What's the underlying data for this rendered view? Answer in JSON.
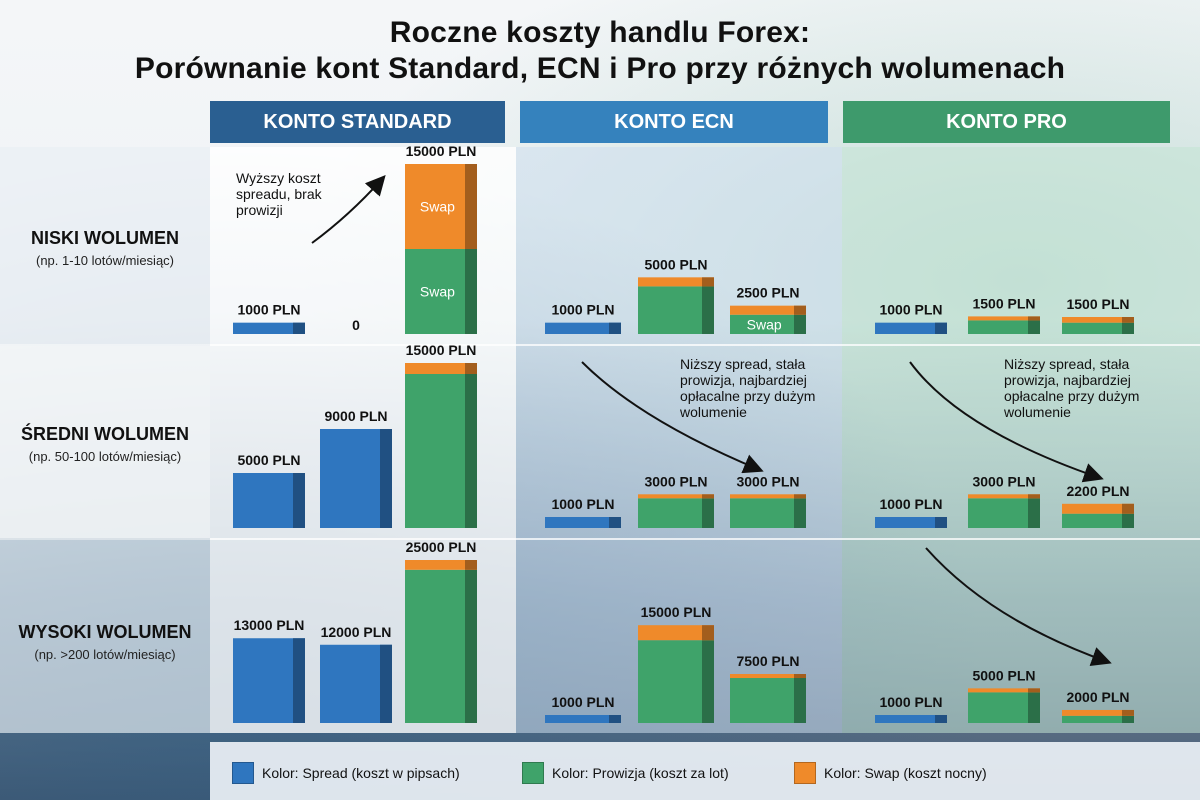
{
  "title": {
    "line1": "Roczne koszty handlu Forex:",
    "line2": "Porównanie kont Standard, ECN i Pro przy różnych wolumenach"
  },
  "accounts": [
    "KONTO STANDARD",
    "KONTO ECN",
    "KONTO PRO"
  ],
  "rows": [
    {
      "label": "NISKI WOLUMEN",
      "sub": "(np. 1-10 lotów/miesiąc)"
    },
    {
      "label": "ŚREDNI WOLUMEN",
      "sub": "(np. 50-100 lotów/miesiąc)"
    },
    {
      "label": "WYSOKI WOLUMEN",
      "sub": "(np. >200 lotów/miesiąc)"
    }
  ],
  "annotations": {
    "standard_low": "Wyższy koszt spreadu, brak prowizji",
    "ecn_mid": "Niższy spread, stała prowizja, najbardziej opłacalne przy dużym wolumenie",
    "pro_mid": "Niższy spread, stała prowizja, najbardziej opłacalne przy dużym wolumenie"
  },
  "legend": [
    {
      "label": "Kolor: Spread (koszt w pipsach)",
      "color": "#2f76bf"
    },
    {
      "label": "Kolor: Prowizja (koszt za lot)",
      "color": "#3fa36a"
    },
    {
      "label": "Kolor: Swap (koszt nocny)",
      "color": "#ef8a2a"
    }
  ],
  "colors": {
    "standard_header": "#2a5f91",
    "ecn_header": "#3582bd",
    "pro_header": "#3e9a6c",
    "spread": "#2f76bf",
    "commission": "#3fa36a",
    "swap": "#ef8a2a"
  },
  "chart_data": {
    "type": "bar",
    "title": "Roczne koszty handlu Forex: Porównanie kont Standard, ECN i Pro przy różnych wolumenach",
    "unit": "PLN",
    "segment_labels": {
      "commission": "Swap",
      "swap": "Swap",
      "swap_ecn_low": "Swap"
    },
    "panels": [
      {
        "account": "KONTO STANDARD",
        "volume": "NISKI WOLUMEN",
        "bars": [
          {
            "label": "1000 PLN",
            "value": 1000,
            "segments": {
              "spread": 1000
            }
          },
          {
            "label": "0",
            "value": 0,
            "segments": {}
          },
          {
            "label": "15000 PLN",
            "value": 15000,
            "segments": {
              "commission": 7500,
              "swap": 7500
            },
            "segment_text": {
              "commission": "Swap",
              "swap": "Swap"
            }
          }
        ]
      },
      {
        "account": "KONTO ECN",
        "volume": "NISKI WOLUMEN",
        "bars": [
          {
            "label": "1000 PLN",
            "value": 1000,
            "segments": {
              "spread": 1000
            }
          },
          {
            "label": "5000 PLN",
            "value": 5000,
            "segments": {
              "commission": 4200,
              "swap": 800
            }
          },
          {
            "label": "2500 PLN",
            "value": 2500,
            "segments": {
              "commission": 1700,
              "swap": 800
            },
            "segment_text": {
              "commission": "Swap"
            }
          }
        ]
      },
      {
        "account": "KONTO PRO",
        "volume": "NISKI WOLUMEN",
        "bars": [
          {
            "label": "1000 PLN",
            "value": 1000,
            "segments": {
              "spread": 1000
            }
          },
          {
            "label": "1500 PLN",
            "value": 1500,
            "segments": {
              "commission": 1200,
              "swap": 300
            }
          },
          {
            "label": "1500 PLN",
            "value": 1500,
            "segments": {
              "commission": 1000,
              "swap": 500
            }
          }
        ]
      },
      {
        "account": "KONTO STANDARD",
        "volume": "ŚREDNI WOLUMEN",
        "bars": [
          {
            "label": "5000 PLN",
            "value": 5000,
            "segments": {
              "spread": 5000
            }
          },
          {
            "label": "9000 PLN",
            "value": 9000,
            "segments": {
              "spread": 9000
            }
          },
          {
            "label": "15000 PLN",
            "value": 15000,
            "segments": {
              "commission": 14000,
              "swap": 1000
            }
          }
        ]
      },
      {
        "account": "KONTO ECN",
        "volume": "ŚREDNI WOLUMEN",
        "bars": [
          {
            "label": "1000 PLN",
            "value": 1000,
            "segments": {
              "spread": 1000
            }
          },
          {
            "label": "3000 PLN",
            "value": 3000,
            "segments": {
              "commission": 2700,
              "swap": 300
            }
          },
          {
            "label": "3000 PLN",
            "value": 3000,
            "segments": {
              "commission": 2700,
              "swap": 300
            }
          }
        ]
      },
      {
        "account": "KONTO PRO",
        "volume": "ŚREDNI WOLUMEN",
        "bars": [
          {
            "label": "1000 PLN",
            "value": 1000,
            "segments": {
              "spread": 1000
            }
          },
          {
            "label": "3000 PLN",
            "value": 3000,
            "segments": {
              "commission": 2700,
              "swap": 300
            }
          },
          {
            "label": "2200 PLN",
            "value": 2200,
            "segments": {
              "commission": 1300,
              "swap": 900
            }
          }
        ]
      },
      {
        "account": "KONTO STANDARD",
        "volume": "WYSOKI WOLUMEN",
        "bars": [
          {
            "label": "13000 PLN",
            "value": 13000,
            "segments": {
              "spread": 13000
            }
          },
          {
            "label": "12000 PLN",
            "value": 12000,
            "segments": {
              "spread": 12000
            }
          },
          {
            "label": "25000 PLN",
            "value": 25000,
            "segments": {
              "commission": 23500,
              "swap": 1500
            }
          }
        ]
      },
      {
        "account": "KONTO ECN",
        "volume": "WYSOKI WOLUMEN",
        "bars": [
          {
            "label": "1000 PLN",
            "value": 1000,
            "segments": {
              "spread": 1000
            }
          },
          {
            "label": "15000 PLN",
            "value": 15000,
            "segments": {
              "commission": 12700,
              "swap": 2300
            }
          },
          {
            "label": "7500 PLN",
            "value": 7500,
            "segments": {
              "commission": 6900,
              "swap": 600
            }
          }
        ]
      },
      {
        "account": "KONTO PRO",
        "volume": "WYSOKI WOLUMEN",
        "bars": [
          {
            "label": "1000 PLN",
            "value": 1000,
            "segments": {
              "spread": 1000
            }
          },
          {
            "label": "5000 PLN",
            "value": 5000,
            "segments": {
              "commission": 4700,
              "swap": 300
            }
          },
          {
            "label": "2000 PLN",
            "value": 2000,
            "segments": {
              "commission": 1100,
              "swap": 900
            }
          }
        ]
      }
    ],
    "legend": [
      "Kolor: Spread (koszt w pipsach)",
      "Kolor: Prowizja (koszt za lot)",
      "Kolor: Swap (koszt nocny)"
    ],
    "legend_position": "bottom"
  }
}
